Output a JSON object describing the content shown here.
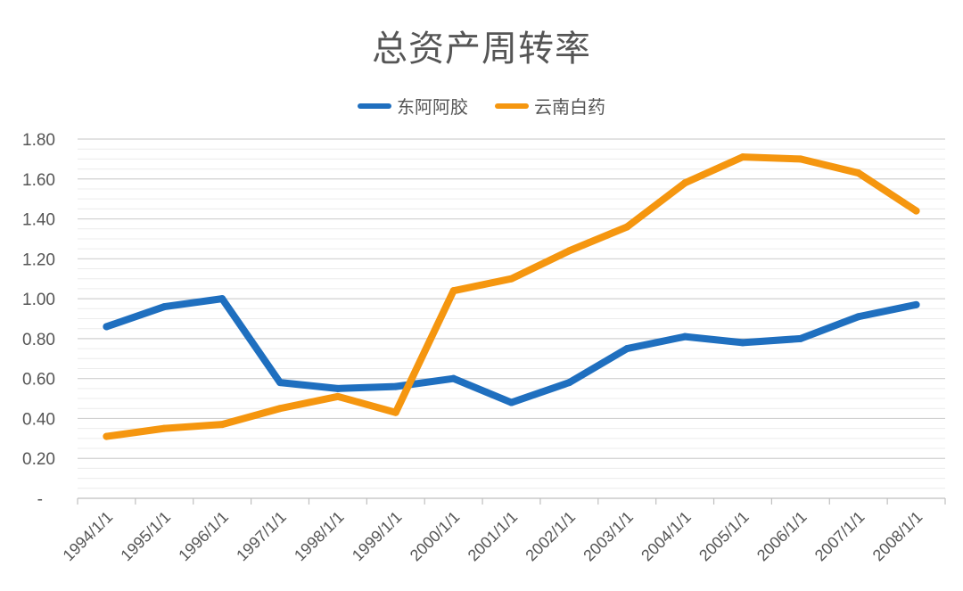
{
  "chart_data": {
    "type": "line",
    "title": "总资产周转率",
    "xlabel": "",
    "ylabel": "",
    "categories": [
      "1994/1/1",
      "1995/1/1",
      "1996/1/1",
      "1997/1/1",
      "1998/1/1",
      "1999/1/1",
      "2000/1/1",
      "2001/1/1",
      "2002/1/1",
      "2003/1/1",
      "2004/1/1",
      "2005/1/1",
      "2006/1/1",
      "2007/1/1",
      "2008/1/1"
    ],
    "series": [
      {
        "name": "东阿阿胶",
        "color": "#1f6fbf",
        "values": [
          0.86,
          0.96,
          1.0,
          0.58,
          0.55,
          0.56,
          0.6,
          0.48,
          0.58,
          0.75,
          0.81,
          0.78,
          0.8,
          0.91,
          0.97
        ]
      },
      {
        "name": "云南白药",
        "color": "#f5960f",
        "values": [
          0.31,
          0.35,
          0.37,
          0.45,
          0.51,
          0.43,
          1.04,
          1.1,
          1.24,
          1.36,
          1.58,
          1.71,
          1.7,
          1.63,
          1.44
        ]
      }
    ],
    "ylim": [
      0,
      1.8
    ],
    "y_ticks": [
      {
        "value": 0,
        "label": "-"
      },
      {
        "value": 0.2,
        "label": "0.20"
      },
      {
        "value": 0.4,
        "label": "0.40"
      },
      {
        "value": 0.6,
        "label": "0.60"
      },
      {
        "value": 0.8,
        "label": "0.80"
      },
      {
        "value": 1.0,
        "label": "1.00"
      },
      {
        "value": 1.2,
        "label": "1.20"
      },
      {
        "value": 1.4,
        "label": "1.40"
      },
      {
        "value": 1.6,
        "label": "1.60"
      },
      {
        "value": 1.8,
        "label": "1.80"
      }
    ],
    "grid": true,
    "legend_position": "top-center"
  }
}
